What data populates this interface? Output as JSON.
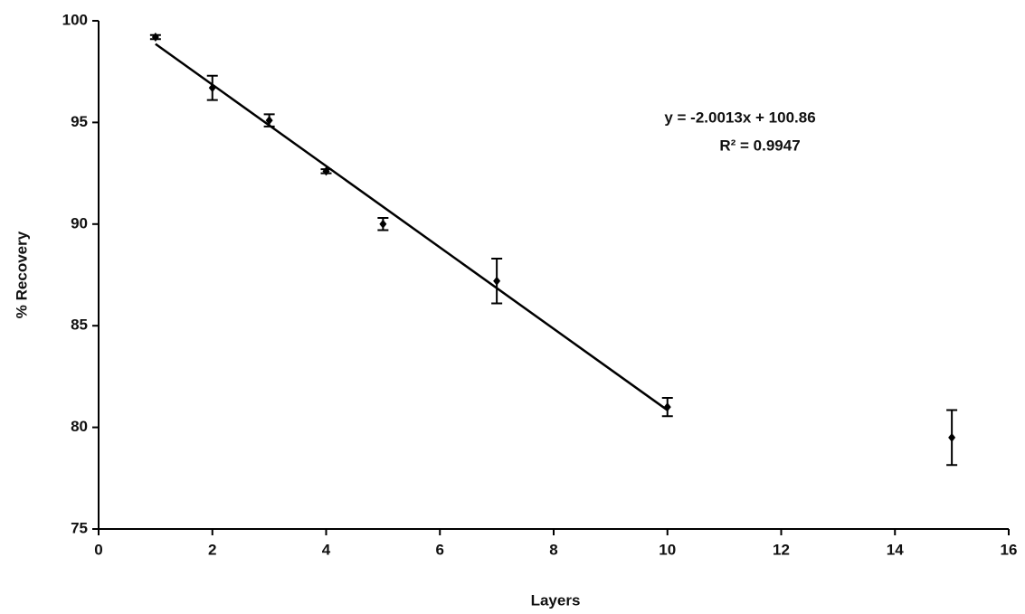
{
  "chart_data": {
    "type": "scatter",
    "x_label": "Layers",
    "y_label": "% Recovery",
    "x": [
      1,
      2,
      3,
      4,
      5,
      7,
      10,
      15
    ],
    "values": [
      99.2,
      96.7,
      95.1,
      92.6,
      90.0,
      87.2,
      81.0,
      79.5
    ],
    "errors": [
      0.1,
      0.6,
      0.3,
      0.1,
      0.3,
      1.1,
      0.45,
      1.35
    ],
    "color": "#000000",
    "trendline": {
      "slope": -2.0013,
      "intercept": 100.86,
      "x": [
        1,
        10
      ]
    },
    "annotations": [
      "y = -2.0013x + 100.86",
      "R² = 0.9947"
    ],
    "xlim": [
      0,
      16
    ],
    "xticks": [
      0,
      2,
      4,
      6,
      8,
      10,
      12,
      14,
      16
    ],
    "ylim": [
      75,
      100
    ],
    "yticks": [
      75,
      80,
      85,
      90,
      95,
      100
    ],
    "grid": false
  }
}
